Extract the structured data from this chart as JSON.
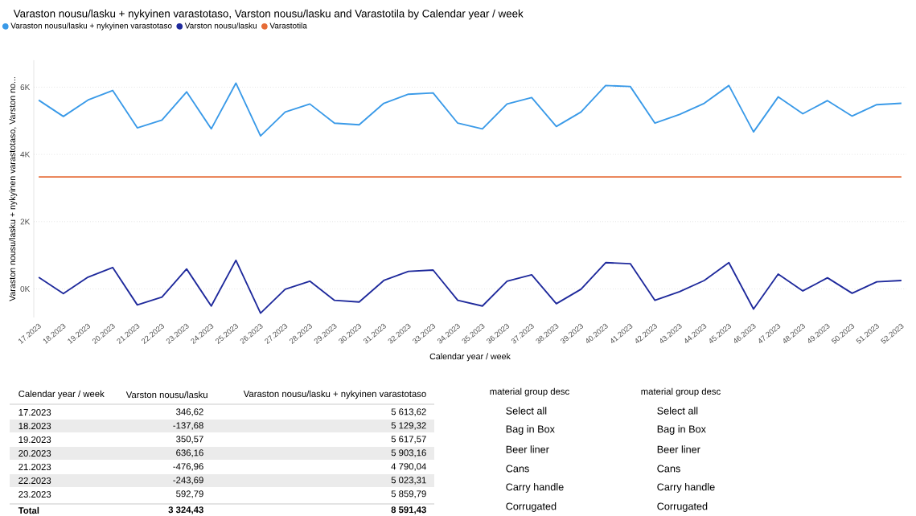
{
  "chart_data": {
    "type": "line",
    "title": "Varaston nousu/lasku + nykyinen varastotaso, Varston nousu/lasku and Varastotila by Calendar year / week",
    "xlabel": "Calendar year / week",
    "ylabel": "Varaston nousu/lasku + nykyinen varastotaso, Varston no...",
    "categories": [
      "17.2023",
      "18.2023",
      "19.2023",
      "20.2023",
      "21.2023",
      "22.2023",
      "23.2023",
      "24.2023",
      "25.2023",
      "26.2023",
      "27.2023",
      "28.2023",
      "29.2023",
      "30.2023",
      "31.2023",
      "32.2023",
      "33.2023",
      "34.2023",
      "35.2023",
      "36.2023",
      "37.2023",
      "38.2023",
      "39.2023",
      "40.2023",
      "41.2023",
      "42.2023",
      "43.2023",
      "44.2023",
      "45.2023",
      "46.2023",
      "47.2023",
      "48.2023",
      "49.2023",
      "50.2023",
      "51.2023",
      "52.2023"
    ],
    "series": [
      {
        "name": "Varaston nousu/lasku + nykyinen varastotaso",
        "color": "#3a9ae8",
        "values": [
          5613.62,
          5129.32,
          5617.57,
          5903.16,
          4790.04,
          5023.31,
          5859.79,
          4760,
          6120,
          4550,
          5260,
          5500,
          4930,
          4880,
          5520,
          5790,
          5830,
          4930,
          4760,
          5500,
          5690,
          4830,
          5260,
          6050,
          6020,
          4930,
          5190,
          5520,
          6050,
          4670,
          5710,
          5210,
          5600,
          5140,
          5480,
          5520
        ]
      },
      {
        "name": "Varston nousu/lasku",
        "color": "#1f2a9c",
        "values": [
          346.62,
          -137.68,
          350.57,
          636.16,
          -476.96,
          -243.69,
          592.79,
          -510,
          850,
          -720,
          -10,
          230,
          -340,
          -390,
          250,
          520,
          560,
          -340,
          -510,
          230,
          420,
          -440,
          -10,
          780,
          750,
          -340,
          -80,
          250,
          780,
          -600,
          440,
          -60,
          330,
          -130,
          210,
          250
        ]
      },
      {
        "name": "Varastotila",
        "color": "#e66c37",
        "values": [
          3330,
          3330,
          3330,
          3330,
          3330,
          3330,
          3330,
          3330,
          3330,
          3330,
          3330,
          3330,
          3330,
          3330,
          3330,
          3330,
          3330,
          3330,
          3330,
          3330,
          3330,
          3330,
          3330,
          3330,
          3330,
          3330,
          3330,
          3330,
          3330,
          3330,
          3330,
          3330,
          3330,
          3330,
          3330,
          3330
        ]
      }
    ],
    "ylim": [
      -850,
      6800
    ],
    "yticks": [
      {
        "value": 0,
        "label": "0K"
      },
      {
        "value": 2000,
        "label": "2K"
      },
      {
        "value": 4000,
        "label": "4K"
      },
      {
        "value": 6000,
        "label": "6K"
      }
    ],
    "grid": "y",
    "legend": "top left",
    "annotations": [
      "Calendar year / week",
      "Varston nousu/lasku",
      "Varaston nousu/lasku + nykyinen varastotaso",
      "17.2023",
      "346,62",
      "5 613,62",
      "18.2023",
      "-137,68",
      "5 129,32",
      "19.2023",
      "350,57",
      "5 617,57",
      "20.2023",
      "636,16",
      "5 903,16",
      "21.2023",
      "-476,96",
      "4 790,04",
      "22.2023",
      "-243,69",
      "5 023,31",
      "23.2023",
      "592,79",
      "5 859,79",
      "Total",
      "3 324,43",
      "8 591,43",
      "material group desc",
      "Select all",
      "Bag in Box",
      "Beer liner",
      "Cans",
      "Carry handle",
      "Corrugated",
      "material group desc",
      "Select all",
      "Bag in Box",
      "Beer liner",
      "Cans",
      "Carry handle",
      "Corrugated"
    ]
  }
}
